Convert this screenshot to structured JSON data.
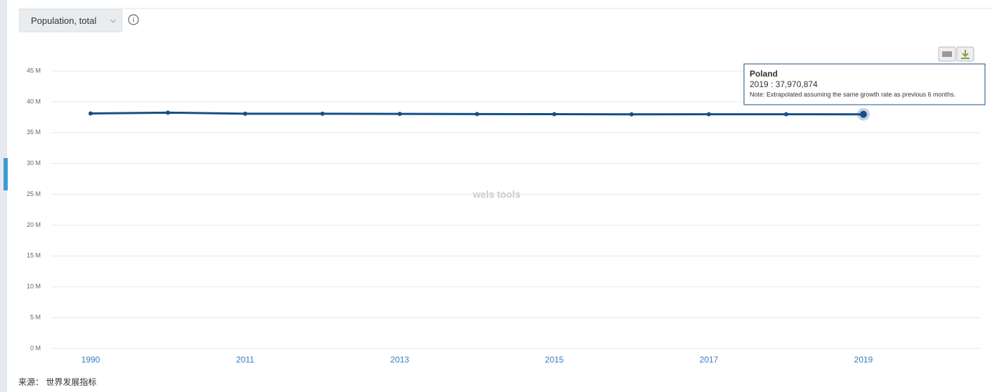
{
  "chart_data": {
    "type": "line",
    "selector": "Population, total",
    "categories": [
      "1990",
      null,
      "2011",
      null,
      "2013",
      null,
      "2015",
      null,
      "2017",
      null,
      "2019"
    ],
    "series": [
      {
        "name": "Poland",
        "color": "#174f86",
        "values": [
          38.11,
          38.24,
          38.06,
          38.06,
          38.04,
          38.01,
          37.99,
          37.97,
          37.98,
          37.98,
          37.97
        ]
      }
    ],
    "ylim": [
      0,
      45
    ],
    "yticks": [
      {
        "value": 0,
        "label": "0 M"
      },
      {
        "value": 5,
        "label": "5 M"
      },
      {
        "value": 10,
        "label": "10 M"
      },
      {
        "value": 15,
        "label": "15 M"
      },
      {
        "value": 20,
        "label": "20 M"
      },
      {
        "value": 25,
        "label": "25 M"
      },
      {
        "value": 30,
        "label": "30 M"
      },
      {
        "value": 35,
        "label": "35 M"
      },
      {
        "value": 40,
        "label": "40 M"
      },
      {
        "value": 45,
        "label": "45 M"
      }
    ],
    "grid": true,
    "tooltip": {
      "text": "2019 : 37,970,874",
      "note": "Note: Extrapolated assuming the same growth rate as previous 6 months."
    },
    "watermark": "wels tools",
    "source": "来源： 世界发展指标"
  }
}
